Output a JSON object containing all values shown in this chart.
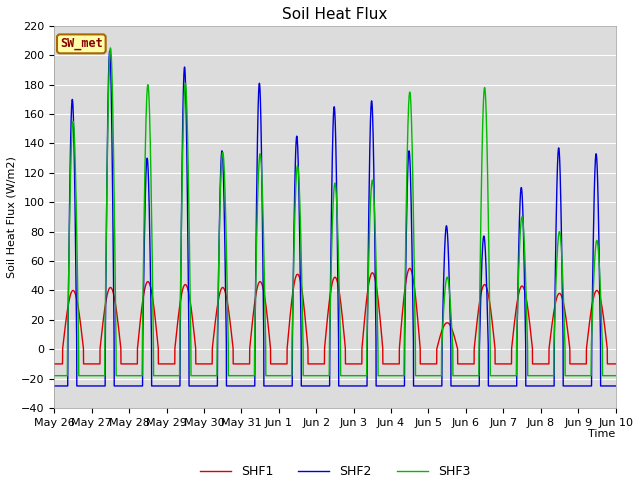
{
  "title": "Soil Heat Flux",
  "ylabel": "Soil Heat Flux (W/m2)",
  "xlabel": "Time",
  "ylim": [
    -40,
    220
  ],
  "legend_label": "SW_met",
  "series": [
    "SHF1",
    "SHF2",
    "SHF3"
  ],
  "colors": [
    "#dd0000",
    "#0000dd",
    "#00bb00"
  ],
  "background_color": "#dcdcdc",
  "figure_color": "#ffffff",
  "xtick_labels": [
    "May 26",
    "May 27",
    "May 28",
    "May 29",
    "May 30",
    "May 31",
    "Jun 1",
    "Jun 2",
    "Jun 3",
    "Jun 4",
    "Jun 5",
    "Jun 6",
    "Jun 7",
    "Jun 8",
    "Jun 9",
    "Jun 10"
  ],
  "yticks": [
    -40,
    -20,
    0,
    20,
    40,
    60,
    80,
    100,
    120,
    140,
    160,
    180,
    200,
    220
  ],
  "linewidth": 1.0,
  "peaks_shf1": [
    40,
    42,
    46,
    44,
    42,
    46,
    51,
    49,
    52,
    55,
    18,
    44,
    43,
    38,
    40
  ],
  "peaks_shf2": [
    170,
    203,
    130,
    192,
    135,
    181,
    145,
    165,
    169,
    135,
    84,
    77,
    110,
    137,
    133
  ],
  "peaks_shf3": [
    155,
    205,
    180,
    181,
    134,
    133,
    125,
    113,
    115,
    175,
    49,
    178,
    90,
    80,
    74
  ],
  "night_shf1": -10,
  "night_shf2": -25,
  "night_shf3": -18,
  "n_days": 15,
  "pts_per_day": 288
}
